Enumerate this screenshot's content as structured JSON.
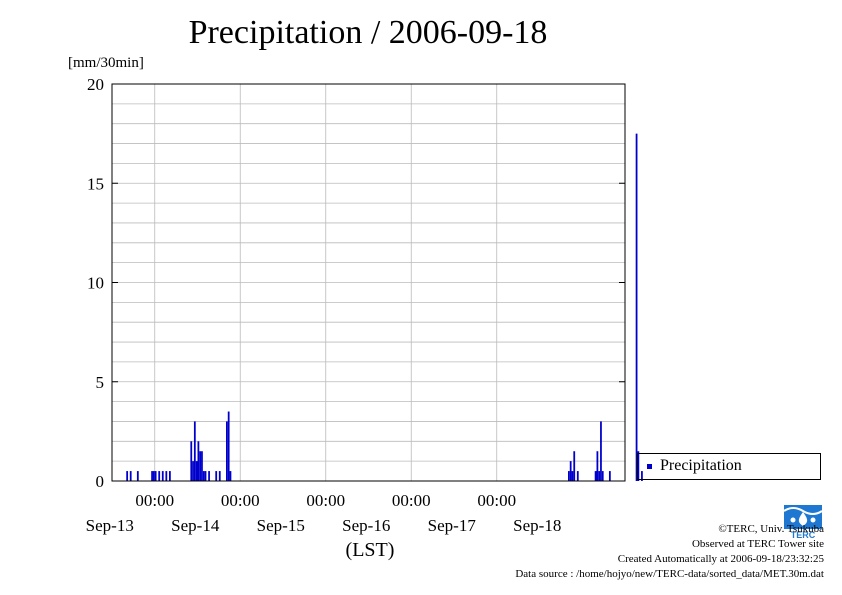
{
  "chart_data": {
    "type": "bar",
    "title": "Precipitation / 2006-09-18",
    "ylabel": "[mm/30min]",
    "xlabel": "(LST)",
    "ylim": [
      0,
      20
    ],
    "yticks": [
      0,
      5,
      10,
      15,
      20
    ],
    "x_time_range": [
      "2006-09-12 12:00",
      "2006-09-18 12:00"
    ],
    "xtick_times": [
      "2006-09-13 00:00",
      "2006-09-14 00:00",
      "2006-09-15 00:00",
      "2006-09-16 00:00",
      "2006-09-17 00:00"
    ],
    "xtick_time_labels": [
      "00:00",
      "00:00",
      "00:00",
      "00:00",
      "00:00"
    ],
    "date_labels": [
      "Sep-13",
      "Sep-14",
      "Sep-15",
      "Sep-16",
      "Sep-17",
      "Sep-18"
    ],
    "grid": true,
    "legend_position": "right",
    "color": "#0000cc",
    "series": [
      {
        "name": "Precipitation",
        "points": [
          {
            "t": "2006-09-12 16:00",
            "v": 0.5
          },
          {
            "t": "2006-09-12 17:00",
            "v": 0.5
          },
          {
            "t": "2006-09-12 19:00",
            "v": 0.5
          },
          {
            "t": "2006-09-12 23:00",
            "v": 0.5
          },
          {
            "t": "2006-09-12 23:30",
            "v": 0.5
          },
          {
            "t": "2006-09-13 00:00",
            "v": 0.5
          },
          {
            "t": "2006-09-13 01:00",
            "v": 0.5
          },
          {
            "t": "2006-09-13 02:00",
            "v": 0.5
          },
          {
            "t": "2006-09-13 03:00",
            "v": 0.5
          },
          {
            "t": "2006-09-13 04:00",
            "v": 0.5
          },
          {
            "t": "2006-09-13 10:00",
            "v": 2.0
          },
          {
            "t": "2006-09-13 10:30",
            "v": 1.0
          },
          {
            "t": "2006-09-13 11:00",
            "v": 3.0
          },
          {
            "t": "2006-09-13 11:30",
            "v": 1.0
          },
          {
            "t": "2006-09-13 12:00",
            "v": 2.0
          },
          {
            "t": "2006-09-13 12:30",
            "v": 1.5
          },
          {
            "t": "2006-09-13 13:00",
            "v": 1.5
          },
          {
            "t": "2006-09-13 13:30",
            "v": 0.5
          },
          {
            "t": "2006-09-13 14:00",
            "v": 0.5
          },
          {
            "t": "2006-09-13 15:00",
            "v": 0.5
          },
          {
            "t": "2006-09-13 17:00",
            "v": 0.5
          },
          {
            "t": "2006-09-13 18:00",
            "v": 0.5
          },
          {
            "t": "2006-09-13 20:00",
            "v": 3.0
          },
          {
            "t": "2006-09-13 20:30",
            "v": 3.5
          },
          {
            "t": "2006-09-13 21:00",
            "v": 0.5
          },
          {
            "t": "2006-09-17 20:00",
            "v": 0.5
          },
          {
            "t": "2006-09-17 20:30",
            "v": 1.0
          },
          {
            "t": "2006-09-17 21:00",
            "v": 0.5
          },
          {
            "t": "2006-09-17 21:30",
            "v": 1.5
          },
          {
            "t": "2006-09-17 22:30",
            "v": 0.5
          },
          {
            "t": "2006-09-18 03:30",
            "v": 0.5
          },
          {
            "t": "2006-09-18 04:00",
            "v": 1.5
          },
          {
            "t": "2006-09-18 04:30",
            "v": 0.5
          },
          {
            "t": "2006-09-18 05:00",
            "v": 3.0
          },
          {
            "t": "2006-09-18 05:30",
            "v": 0.5
          },
          {
            "t": "2006-09-18 07:30",
            "v": 0.5
          },
          {
            "t": "2006-09-18 15:00",
            "v": 17.5
          },
          {
            "t": "2006-09-18 15:30",
            "v": 1.5
          },
          {
            "t": "2006-09-18 16:30",
            "v": 0.5
          }
        ]
      }
    ]
  },
  "logo": {
    "text": "TERC"
  },
  "credits": {
    "copyright": "©TERC, Univ. Tsukuba",
    "observed": "Observed at TERC Tower site",
    "created": "Created Automatically at 2006-09-18/23:32:25",
    "source": "Data source : /home/hojyo/new/TERC-data/sorted_data/MET.30m.dat"
  }
}
